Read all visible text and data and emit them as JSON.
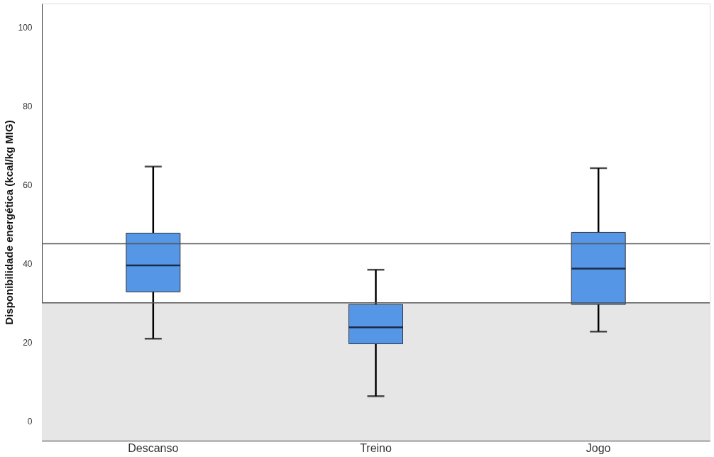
{
  "chart_data": {
    "type": "box",
    "ylabel": "Disponibilidade energética (kcal/kg MIG)",
    "categories": [
      "Descanso",
      "Treino",
      "Jogo"
    ],
    "boxes": [
      {
        "low": 20.9,
        "q1": 32.8,
        "median": 39.5,
        "q3": 47.7,
        "high": 64.6
      },
      {
        "low": 6.3,
        "q1": 19.6,
        "median": 23.8,
        "q3": 29.6,
        "high": 38.4
      },
      {
        "low": 22.7,
        "q1": 29.6,
        "median": 38.7,
        "q3": 47.9,
        "high": 64.2
      }
    ],
    "color": "#5596e6",
    "ylim": [
      -5,
      106
    ],
    "yticks": [
      0,
      20,
      40,
      60,
      80,
      100
    ],
    "grid": false,
    "ref_lines": [
      {
        "axis": "y",
        "value": 45,
        "color": "#555555"
      },
      {
        "axis": "y",
        "value": 30,
        "color": "#555555"
      }
    ],
    "bands": [
      {
        "axis": "y",
        "from": -5,
        "to": 30,
        "color": "#e6e6e6"
      }
    ]
  }
}
